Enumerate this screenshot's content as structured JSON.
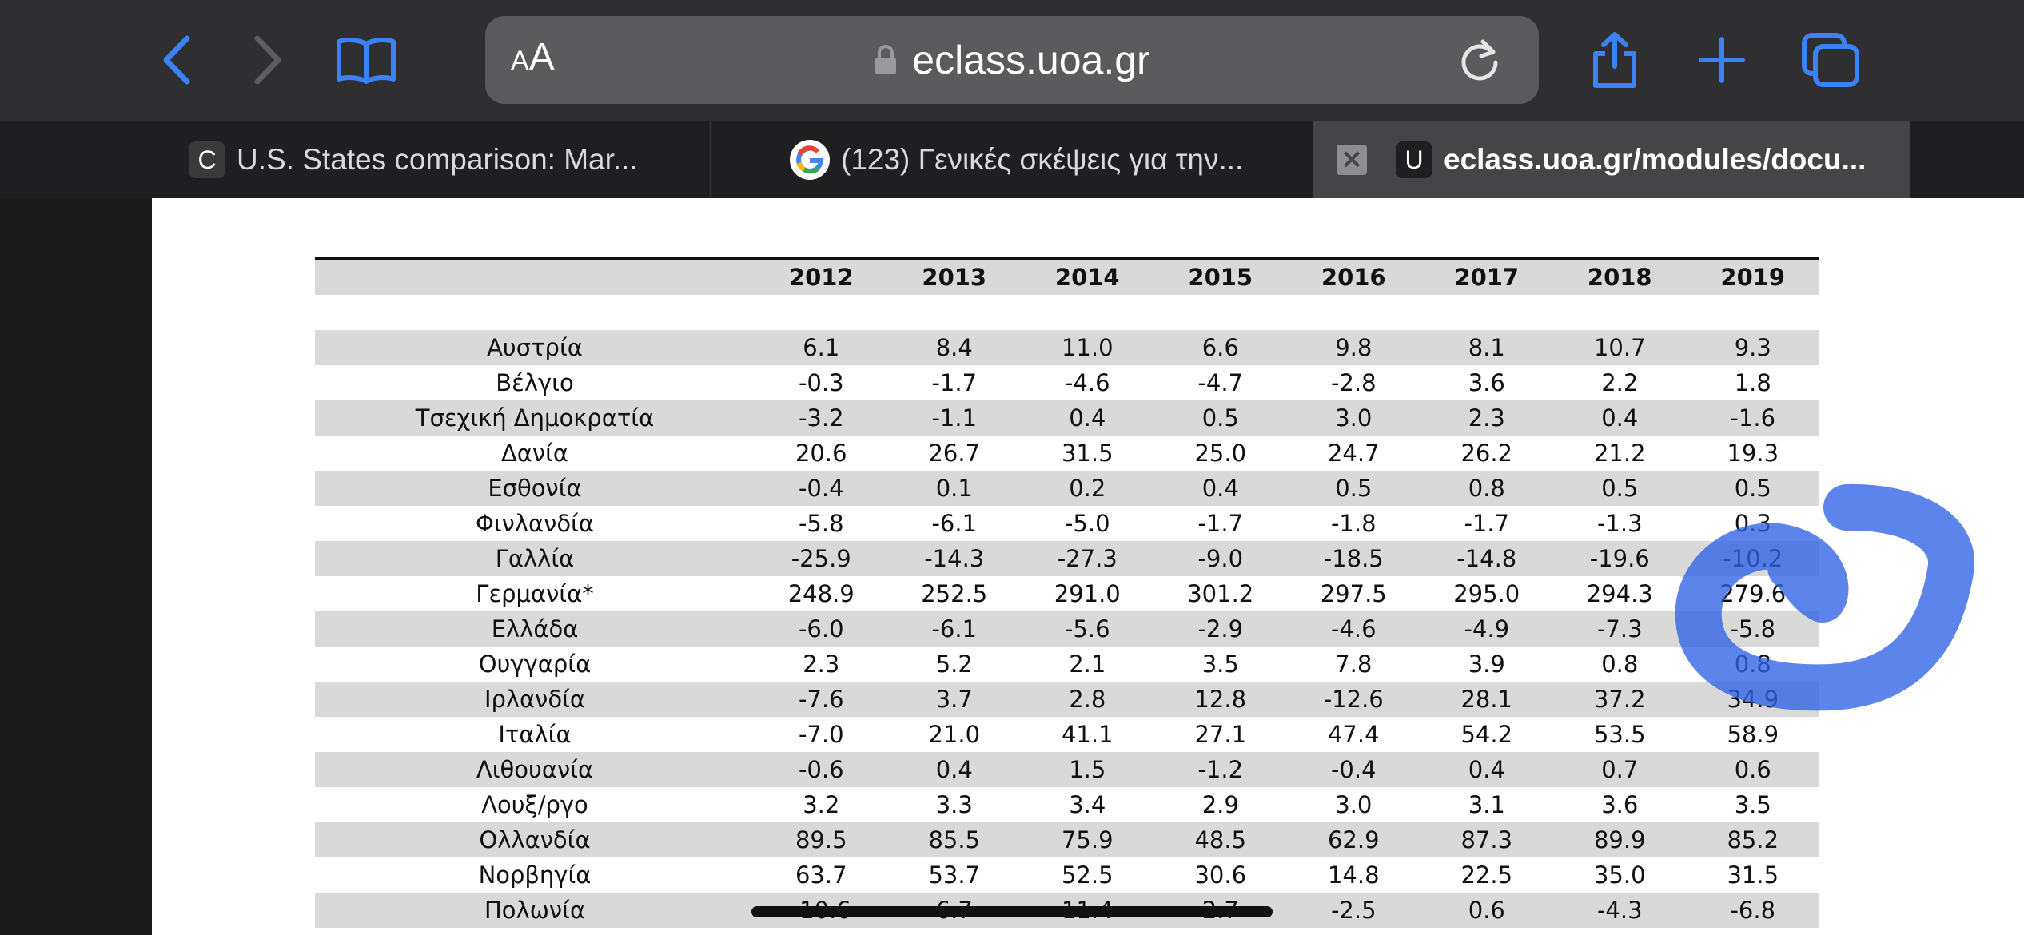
{
  "browser": {
    "aa_small": "A",
    "aa_big": "A",
    "url": "eclass.uoa.gr",
    "tabs": [
      {
        "favicon": "C",
        "title": "U.S. States comparison: Mar..."
      },
      {
        "favicon": "google-logo",
        "title": "(123) Γενικές σκέψεις για την..."
      },
      {
        "favicon": "U",
        "title": "eclass.uoa.gr/modules/docu..."
      }
    ],
    "icons": [
      "back-icon",
      "forward-icon",
      "bookmarks-icon",
      "lock-icon",
      "reload-icon",
      "share-icon",
      "new-tab-icon",
      "tabs-icon",
      "tab-close-icon"
    ],
    "accent": "#3b82f6"
  },
  "table": {
    "years": [
      "2012",
      "2013",
      "2014",
      "2015",
      "2016",
      "2017",
      "2018",
      "2019"
    ],
    "rows": [
      {
        "country": "Αυστρία",
        "values": [
          "6.1",
          "8.4",
          "11.0",
          "6.6",
          "9.8",
          "8.1",
          "10.7",
          "9.3"
        ]
      },
      {
        "country": "Βέλγιο",
        "values": [
          "-0.3",
          "-1.7",
          "-4.6",
          "-4.7",
          "-2.8",
          "3.6",
          "2.2",
          "1.8"
        ]
      },
      {
        "country": "Τσεχική Δημοκρατία",
        "values": [
          "-3.2",
          "-1.1",
          "0.4",
          "0.5",
          "3.0",
          "2.3",
          "0.4",
          "-1.6"
        ]
      },
      {
        "country": "Δανία",
        "values": [
          "20.6",
          "26.7",
          "31.5",
          "25.0",
          "24.7",
          "26.2",
          "21.2",
          "19.3"
        ]
      },
      {
        "country": "Εσθονία",
        "values": [
          "-0.4",
          "0.1",
          "0.2",
          "0.4",
          "0.5",
          "0.8",
          "0.5",
          "0.5"
        ]
      },
      {
        "country": "Φινλανδία",
        "values": [
          "-5.8",
          "-6.1",
          "-5.0",
          "-1.7",
          "-1.8",
          "-1.7",
          "-1.3",
          "0.3"
        ]
      },
      {
        "country": "Γαλλία",
        "values": [
          "-25.9",
          "-14.3",
          "-27.3",
          "-9.0",
          "-18.5",
          "-14.8",
          "-19.6",
          "-10.2"
        ]
      },
      {
        "country": "Γερμανία*",
        "values": [
          "248.9",
          "252.5",
          "291.0",
          "301.2",
          "297.5",
          "295.0",
          "294.3",
          "279.6"
        ]
      },
      {
        "country": "Ελλάδα",
        "values": [
          "-6.0",
          "-6.1",
          "-5.6",
          "-2.9",
          "-4.6",
          "-4.9",
          "-7.3",
          "-5.8"
        ]
      },
      {
        "country": "Ουγγαρία",
        "values": [
          "2.3",
          "5.2",
          "2.1",
          "3.5",
          "7.8",
          "3.9",
          "0.8",
          "0.8"
        ]
      },
      {
        "country": "Ιρλανδία",
        "values": [
          "-7.6",
          "3.7",
          "2.8",
          "12.8",
          "-12.6",
          "28.1",
          "37.2",
          "34.9"
        ]
      },
      {
        "country": "Ιταλία",
        "values": [
          "-7.0",
          "21.0",
          "41.1",
          "27.1",
          "47.4",
          "54.2",
          "53.5",
          "58.9"
        ]
      },
      {
        "country": "Λιθουανία",
        "values": [
          "-0.6",
          "0.4",
          "1.5",
          "-1.2",
          "-0.4",
          "0.4",
          "0.7",
          "0.6"
        ]
      },
      {
        "country": "Λουξ/ργο",
        "values": [
          "3.2",
          "3.3",
          "3.4",
          "2.9",
          "3.0",
          "3.1",
          "3.6",
          "3.5"
        ]
      },
      {
        "country": "Ολλανδία",
        "values": [
          "89.5",
          "85.5",
          "75.9",
          "48.5",
          "62.9",
          "87.3",
          "89.9",
          "85.2"
        ]
      },
      {
        "country": "Νορβηγία",
        "values": [
          "63.7",
          "53.7",
          "52.5",
          "30.6",
          "14.8",
          "22.5",
          "35.0",
          "31.5"
        ]
      },
      {
        "country": "Πολωνία",
        "values": [
          "-10.6",
          "6.7",
          "11.4",
          "2.7",
          "-2.5",
          "0.6",
          "-4.3",
          "-6.8"
        ]
      }
    ]
  }
}
